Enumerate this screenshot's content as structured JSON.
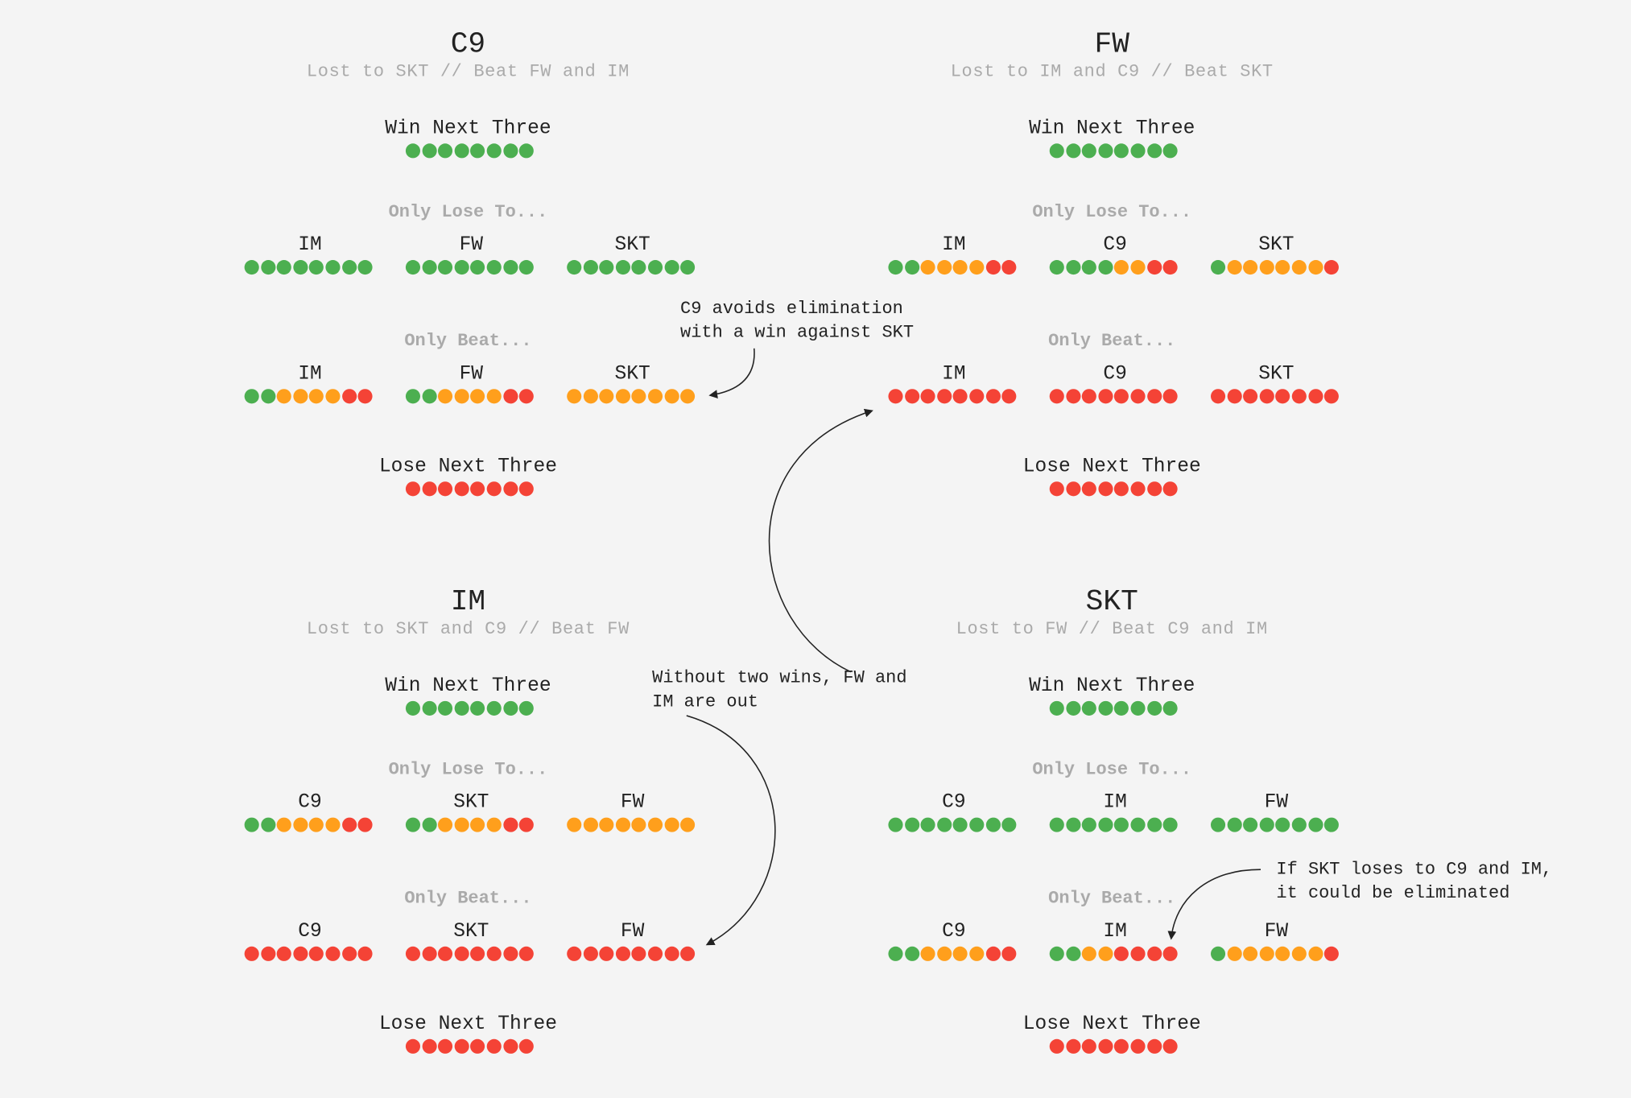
{
  "colors": {
    "win": "#4caf50",
    "maybe": "#ff9f1c",
    "loss": "#f44336",
    "background": "#f4f4f4"
  },
  "labels": {
    "win_next_three": "Win Next Three",
    "lose_next_three": "Lose Next Three",
    "only_lose_to": "Only Lose To...",
    "only_beat": "Only Beat..."
  },
  "teams": [
    {
      "name": "C9",
      "subtitle": "Lost to SKT // Beat FW and IM",
      "win_all": [
        "W",
        "W",
        "W",
        "W",
        "W",
        "W",
        "W",
        "W"
      ],
      "lose_to": [
        {
          "opponent": "IM",
          "dots": [
            "W",
            "W",
            "W",
            "W",
            "W",
            "W",
            "W",
            "W"
          ]
        },
        {
          "opponent": "FW",
          "dots": [
            "W",
            "W",
            "W",
            "W",
            "W",
            "W",
            "W",
            "W"
          ]
        },
        {
          "opponent": "SKT",
          "dots": [
            "W",
            "W",
            "W",
            "W",
            "W",
            "W",
            "W",
            "W"
          ]
        }
      ],
      "beat": [
        {
          "opponent": "IM",
          "dots": [
            "W",
            "W",
            "M",
            "M",
            "M",
            "M",
            "L",
            "L"
          ]
        },
        {
          "opponent": "FW",
          "dots": [
            "W",
            "W",
            "M",
            "M",
            "M",
            "M",
            "L",
            "L"
          ]
        },
        {
          "opponent": "SKT",
          "dots": [
            "M",
            "M",
            "M",
            "M",
            "M",
            "M",
            "M",
            "M"
          ]
        }
      ],
      "lose_all": [
        "L",
        "L",
        "L",
        "L",
        "L",
        "L",
        "L",
        "L"
      ]
    },
    {
      "name": "FW",
      "subtitle": "Lost to IM and C9 // Beat SKT",
      "win_all": [
        "W",
        "W",
        "W",
        "W",
        "W",
        "W",
        "W",
        "W"
      ],
      "lose_to": [
        {
          "opponent": "IM",
          "dots": [
            "W",
            "W",
            "M",
            "M",
            "M",
            "M",
            "L",
            "L"
          ]
        },
        {
          "opponent": "C9",
          "dots": [
            "W",
            "W",
            "W",
            "W",
            "M",
            "M",
            "L",
            "L"
          ]
        },
        {
          "opponent": "SKT",
          "dots": [
            "W",
            "M",
            "M",
            "M",
            "M",
            "M",
            "M",
            "L"
          ]
        }
      ],
      "beat": [
        {
          "opponent": "IM",
          "dots": [
            "L",
            "L",
            "L",
            "L",
            "L",
            "L",
            "L",
            "L"
          ]
        },
        {
          "opponent": "C9",
          "dots": [
            "L",
            "L",
            "L",
            "L",
            "L",
            "L",
            "L",
            "L"
          ]
        },
        {
          "opponent": "SKT",
          "dots": [
            "L",
            "L",
            "L",
            "L",
            "L",
            "L",
            "L",
            "L"
          ]
        }
      ],
      "lose_all": [
        "L",
        "L",
        "L",
        "L",
        "L",
        "L",
        "L",
        "L"
      ]
    },
    {
      "name": "IM",
      "subtitle": "Lost to SKT and C9 // Beat FW",
      "win_all": [
        "W",
        "W",
        "W",
        "W",
        "W",
        "W",
        "W",
        "W"
      ],
      "lose_to": [
        {
          "opponent": "C9",
          "dots": [
            "W",
            "W",
            "M",
            "M",
            "M",
            "M",
            "L",
            "L"
          ]
        },
        {
          "opponent": "SKT",
          "dots": [
            "W",
            "W",
            "M",
            "M",
            "M",
            "M",
            "L",
            "L"
          ]
        },
        {
          "opponent": "FW",
          "dots": [
            "M",
            "M",
            "M",
            "M",
            "M",
            "M",
            "M",
            "M"
          ]
        }
      ],
      "beat": [
        {
          "opponent": "C9",
          "dots": [
            "L",
            "L",
            "L",
            "L",
            "L",
            "L",
            "L",
            "L"
          ]
        },
        {
          "opponent": "SKT",
          "dots": [
            "L",
            "L",
            "L",
            "L",
            "L",
            "L",
            "L",
            "L"
          ]
        },
        {
          "opponent": "FW",
          "dots": [
            "L",
            "L",
            "L",
            "L",
            "L",
            "L",
            "L",
            "L"
          ]
        }
      ],
      "lose_all": [
        "L",
        "L",
        "L",
        "L",
        "L",
        "L",
        "L",
        "L"
      ]
    },
    {
      "name": "SKT",
      "subtitle": "Lost to FW // Beat C9 and IM",
      "win_all": [
        "W",
        "W",
        "W",
        "W",
        "W",
        "W",
        "W",
        "W"
      ],
      "lose_to": [
        {
          "opponent": "C9",
          "dots": [
            "W",
            "W",
            "W",
            "W",
            "W",
            "W",
            "W",
            "W"
          ]
        },
        {
          "opponent": "IM",
          "dots": [
            "W",
            "W",
            "W",
            "W",
            "W",
            "W",
            "W",
            "W"
          ]
        },
        {
          "opponent": "FW",
          "dots": [
            "W",
            "W",
            "W",
            "W",
            "W",
            "W",
            "W",
            "W"
          ]
        }
      ],
      "beat": [
        {
          "opponent": "C9",
          "dots": [
            "W",
            "W",
            "M",
            "M",
            "M",
            "M",
            "L",
            "L"
          ]
        },
        {
          "opponent": "IM",
          "dots": [
            "W",
            "W",
            "M",
            "M",
            "L",
            "L",
            "L",
            "L"
          ]
        },
        {
          "opponent": "FW",
          "dots": [
            "W",
            "M",
            "M",
            "M",
            "M",
            "M",
            "M",
            "L"
          ]
        }
      ],
      "lose_all": [
        "L",
        "L",
        "L",
        "L",
        "L",
        "L",
        "L",
        "L"
      ]
    }
  ],
  "annotations": [
    {
      "text": "C9 avoids elimination\nwith a win against SKT"
    },
    {
      "text": "Without two wins, FW and\nIM are out"
    },
    {
      "text": "If SKT loses to C9 and IM,\nit could be eliminated"
    }
  ]
}
